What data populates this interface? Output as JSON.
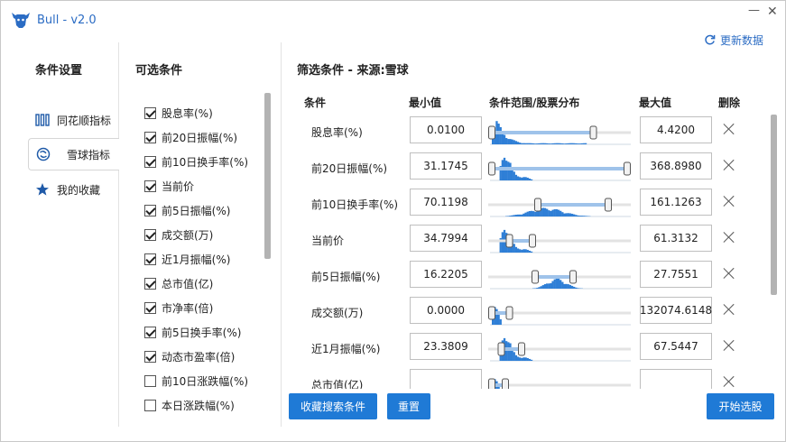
{
  "app": {
    "title": "Bull - v2.0",
    "logo_icon": "bull-head-icon",
    "minimize_label": "—",
    "close_label": "✕"
  },
  "refresh": {
    "label": "更新数据",
    "icon": "refresh-icon"
  },
  "nav": {
    "title": "条件设置",
    "items": [
      {
        "label": "同花顺指标",
        "icon": "bars-icon"
      },
      {
        "label": "雪球指标",
        "icon": "snowball-icon",
        "active": true
      },
      {
        "label": "我的收藏",
        "icon": "star-icon"
      }
    ]
  },
  "conditions": {
    "title": "可选条件",
    "items": [
      {
        "label": "股息率(%)",
        "checked": true
      },
      {
        "label": "前20日振幅(%)",
        "checked": true
      },
      {
        "label": "前10日换手率(%)",
        "checked": true
      },
      {
        "label": "当前价",
        "checked": true
      },
      {
        "label": "前5日振幅(%)",
        "checked": true
      },
      {
        "label": "成交额(万)",
        "checked": true
      },
      {
        "label": "近1月振幅(%)",
        "checked": true
      },
      {
        "label": "总市值(亿)",
        "checked": true
      },
      {
        "label": "市净率(倍)",
        "checked": true
      },
      {
        "label": "前5日换手率(%)",
        "checked": true
      },
      {
        "label": "动态市盈率(倍)",
        "checked": true
      },
      {
        "label": "前10日涨跌幅(%)",
        "checked": false
      },
      {
        "label": "本日涨跌幅(%)",
        "checked": false
      }
    ]
  },
  "filters": {
    "title": "筛选条件 - 来源:雪球",
    "headers": {
      "condition": "条件",
      "min": "最小值",
      "range": "条件范围/股票分布",
      "max": "最大值",
      "delete": "删除"
    },
    "rows": [
      {
        "name": "股息率(%)",
        "min": "0.0100",
        "max": "4.4200",
        "low": 0.0,
        "high": 0.75,
        "shape": "decay"
      },
      {
        "name": "前20日振幅(%)",
        "min": "31.1745",
        "max": "368.8980",
        "low": 0.0,
        "high": 1.0,
        "shape": "early"
      },
      {
        "name": "前10日换手率(%)",
        "min": "70.1198",
        "max": "161.1263",
        "low": 0.34,
        "high": 0.86,
        "shape": "wide"
      },
      {
        "name": "当前价",
        "min": "34.7994",
        "max": "61.3132",
        "low": 0.13,
        "high": 0.3,
        "shape": "early"
      },
      {
        "name": "前5日振幅(%)",
        "min": "16.2205",
        "max": "27.7551",
        "low": 0.32,
        "high": 0.6,
        "shape": "mid"
      },
      {
        "name": "成交额(万)",
        "min": "0.0000",
        "max": "132074.6148",
        "low": 0.0,
        "high": 0.13,
        "shape": "spike"
      },
      {
        "name": "近1月振幅(%)",
        "min": "23.3809",
        "max": "67.5447",
        "low": 0.07,
        "high": 0.22,
        "shape": "early"
      },
      {
        "name": "总市值(亿)",
        "min": "",
        "max": "",
        "low": 0.0,
        "high": 0.1,
        "shape": "spike"
      }
    ]
  },
  "buttons": {
    "favorite": "收藏搜索条件",
    "reset": "重置",
    "start": "开始选股"
  },
  "colors": {
    "accent": "#1f7ad6",
    "histogram": "#2f7fd6",
    "range_fill": "#9fc3ea"
  }
}
